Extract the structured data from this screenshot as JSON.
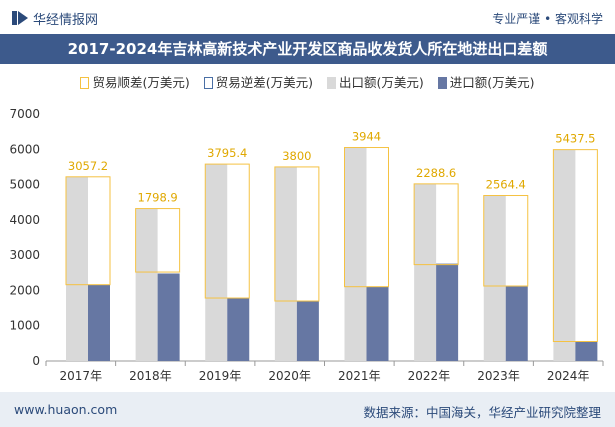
{
  "header": {
    "brand": "华经情报网",
    "tagline": "专业严谨 • 客观科学",
    "title": "2017-2024年吉林高新技术产业开发区商品收发货人所在地进出口差额"
  },
  "footer": {
    "site": "www.huaon.com",
    "source": "数据来源：中国海关，华经产业研究院整理"
  },
  "colors": {
    "surplus": "#f5c242",
    "deficit": "#4a6fa5",
    "export": "#d9d9d9",
    "import": "#6677a3",
    "title_bg": "#3d5a8c"
  },
  "chart_data": {
    "type": "bar",
    "title": "2017-2024年吉林高新技术产业开发区商品收发货人所在地进出口差额",
    "categories": [
      "2017年",
      "2018年",
      "2019年",
      "2020年",
      "2021年",
      "2022年",
      "2023年",
      "2024年"
    ],
    "ylim": [
      0,
      7000
    ],
    "yticks": [
      0,
      1000,
      2000,
      3000,
      4000,
      5000,
      6000,
      7000
    ],
    "series": [
      {
        "name": "贸易顺差(万美元)",
        "values": [
          3057.2,
          1798.9,
          3795.4,
          3800,
          3944,
          2288.6,
          2564.4,
          5437.5
        ]
      },
      {
        "name": "贸易逆差(万美元)",
        "values": [
          0,
          0,
          0,
          0,
          0,
          0,
          0,
          0
        ]
      },
      {
        "name": "出口额(万美元)",
        "values": [
          5220,
          4320,
          5580,
          5500,
          6050,
          5020,
          4690,
          5990
        ]
      },
      {
        "name": "进口额(万美元)",
        "values": [
          2160,
          2480,
          1780,
          1690,
          2110,
          2760,
          2110,
          550
        ]
      }
    ],
    "data_labels": [
      "3057.2",
      "1798.9",
      "3795.4",
      "3800",
      "3944",
      "2288.6",
      "2564.4",
      "5437.5"
    ],
    "legend_position": "top",
    "grid": false
  }
}
